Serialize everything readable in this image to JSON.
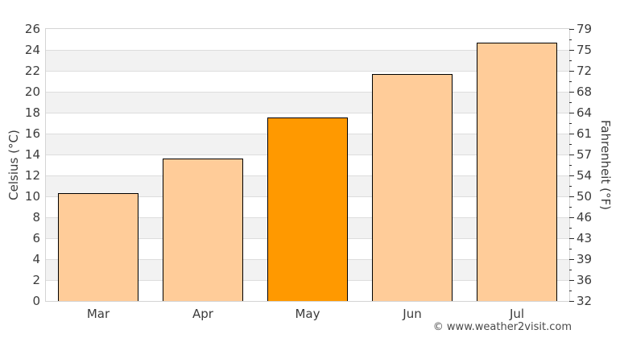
{
  "footer": {
    "attribution": "© www.weather2visit.com"
  },
  "chart_data": {
    "type": "bar",
    "categories": [
      "Mar",
      "Apr",
      "May",
      "Jun",
      "Jul"
    ],
    "values_celsius": [
      10.3,
      13.6,
      17.5,
      21.7,
      24.7
    ],
    "highlight_index": 2,
    "highlighted_category": "May",
    "ylabel_left": "Celsius (°C)",
    "ylabel_right": "Fahrenheit (°F)",
    "ylim_celsius": [
      0,
      26
    ],
    "celsius_tick_step": 2,
    "celsius_tick_labels": [
      "26",
      "24",
      "22",
      "20",
      "18",
      "16",
      "14",
      "12",
      "10",
      "8",
      "6",
      "4",
      "2",
      "0"
    ],
    "fahrenheit_tick_labels": [
      "79",
      "75",
      "72",
      "68",
      "64",
      "61",
      "57",
      "54",
      "50",
      "46",
      "43",
      "39",
      "36",
      "32"
    ],
    "grid": "horizontal-alternating-bands",
    "legend": "none",
    "colors": {
      "bar_fill": "#FFCC99",
      "bar_highlight_fill": "#FF9900",
      "bar_border": "#000000",
      "band_alt": "#F2F2F2",
      "band_main": "#FFFFFF",
      "gridline": "#DDDDDD",
      "plot_border": "#D4D4D4",
      "text": "#3C3C3C",
      "footer_text": "#4A4A4A"
    }
  }
}
